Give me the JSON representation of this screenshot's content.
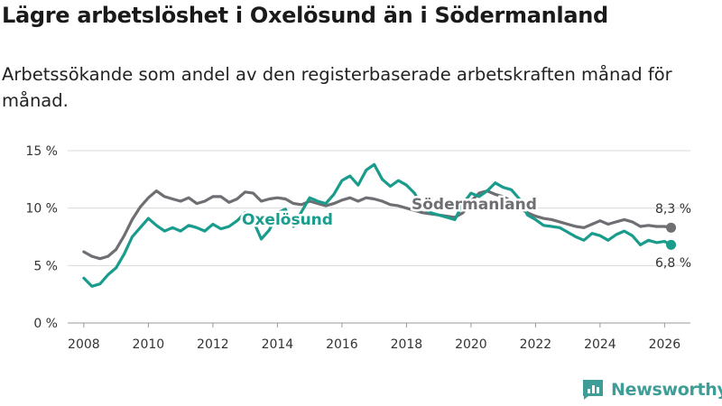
{
  "title": "Lägre arbetslöshet i Oxelösund än i Södermanland",
  "subtitle": "Arbetssökande som andel av den registerbaserade arbetskraften månad för månad.",
  "brand": "Newsworthy",
  "colors": {
    "oxelosund": "#1a9c8c",
    "sodermanland": "#6e6e73",
    "grid": "#d9d9d9",
    "brand": "#3e9d96"
  },
  "chart_data": {
    "type": "line",
    "title": "Lägre arbetslöshet i Oxelösund än i Södermanland",
    "xlabel": "",
    "ylabel": "",
    "xlim": [
      2007.5,
      2026.8
    ],
    "ylim": [
      0,
      15
    ],
    "x_ticks": [
      2008,
      2010,
      2012,
      2014,
      2016,
      2018,
      2020,
      2022,
      2024,
      2026
    ],
    "x_tick_labels": [
      "2008",
      "2010",
      "2012",
      "2014",
      "2016",
      "2018",
      "2020",
      "2022",
      "2024",
      "2026"
    ],
    "y_ticks": [
      0,
      5,
      10,
      15
    ],
    "y_tick_labels": [
      "0 %",
      "5 %",
      "10 %",
      "15 %"
    ],
    "grid": true,
    "series": [
      {
        "name": "Oxelösund",
        "key": "oxelosund",
        "label": "Oxelösund",
        "end_label": "6,8 %",
        "points": [
          [
            2008.0,
            3.9
          ],
          [
            2008.25,
            3.2
          ],
          [
            2008.5,
            3.4
          ],
          [
            2008.75,
            4.2
          ],
          [
            2009.0,
            4.8
          ],
          [
            2009.25,
            6.0
          ],
          [
            2009.5,
            7.5
          ],
          [
            2009.75,
            8.3
          ],
          [
            2010.0,
            9.1
          ],
          [
            2010.25,
            8.5
          ],
          [
            2010.5,
            8.0
          ],
          [
            2010.75,
            8.3
          ],
          [
            2011.0,
            8.0
          ],
          [
            2011.25,
            8.5
          ],
          [
            2011.5,
            8.3
          ],
          [
            2011.75,
            8.0
          ],
          [
            2012.0,
            8.6
          ],
          [
            2012.25,
            8.2
          ],
          [
            2012.5,
            8.4
          ],
          [
            2012.75,
            8.9
          ],
          [
            2013.0,
            9.6
          ],
          [
            2013.25,
            8.9
          ],
          [
            2013.5,
            7.3
          ],
          [
            2013.75,
            8.1
          ],
          [
            2014.0,
            9.6
          ],
          [
            2014.25,
            9.9
          ],
          [
            2014.5,
            8.4
          ],
          [
            2014.75,
            9.7
          ],
          [
            2015.0,
            10.9
          ],
          [
            2015.25,
            10.6
          ],
          [
            2015.5,
            10.4
          ],
          [
            2015.75,
            11.2
          ],
          [
            2016.0,
            12.4
          ],
          [
            2016.25,
            12.8
          ],
          [
            2016.5,
            12.0
          ],
          [
            2016.75,
            13.3
          ],
          [
            2017.0,
            13.8
          ],
          [
            2017.25,
            12.5
          ],
          [
            2017.5,
            11.9
          ],
          [
            2017.75,
            12.4
          ],
          [
            2018.0,
            12.0
          ],
          [
            2018.25,
            11.3
          ],
          [
            2018.5,
            10.0
          ],
          [
            2018.75,
            9.6
          ],
          [
            2019.0,
            9.4
          ],
          [
            2019.25,
            9.2
          ],
          [
            2019.5,
            9.0
          ],
          [
            2019.75,
            10.4
          ],
          [
            2020.0,
            11.3
          ],
          [
            2020.25,
            11.0
          ],
          [
            2020.5,
            11.5
          ],
          [
            2020.75,
            12.2
          ],
          [
            2021.0,
            11.8
          ],
          [
            2021.25,
            11.6
          ],
          [
            2021.5,
            10.8
          ],
          [
            2021.75,
            9.4
          ],
          [
            2022.0,
            9.0
          ],
          [
            2022.25,
            8.5
          ],
          [
            2022.5,
            8.4
          ],
          [
            2022.75,
            8.3
          ],
          [
            2023.0,
            7.9
          ],
          [
            2023.25,
            7.5
          ],
          [
            2023.5,
            7.2
          ],
          [
            2023.75,
            7.8
          ],
          [
            2024.0,
            7.6
          ],
          [
            2024.25,
            7.2
          ],
          [
            2024.5,
            7.7
          ],
          [
            2024.75,
            8.0
          ],
          [
            2025.0,
            7.6
          ],
          [
            2025.25,
            6.8
          ],
          [
            2025.5,
            7.2
          ],
          [
            2025.75,
            7.0
          ],
          [
            2026.0,
            7.1
          ],
          [
            2026.2,
            6.8
          ]
        ]
      },
      {
        "name": "Södermanland",
        "key": "sodermanland",
        "label": "Södermanland",
        "end_label": "8,3 %",
        "points": [
          [
            2008.0,
            6.2
          ],
          [
            2008.25,
            5.8
          ],
          [
            2008.5,
            5.6
          ],
          [
            2008.75,
            5.8
          ],
          [
            2009.0,
            6.4
          ],
          [
            2009.25,
            7.6
          ],
          [
            2009.5,
            9.0
          ],
          [
            2009.75,
            10.1
          ],
          [
            2010.0,
            10.9
          ],
          [
            2010.25,
            11.5
          ],
          [
            2010.5,
            11.0
          ],
          [
            2010.75,
            10.8
          ],
          [
            2011.0,
            10.6
          ],
          [
            2011.25,
            10.9
          ],
          [
            2011.5,
            10.4
          ],
          [
            2011.75,
            10.6
          ],
          [
            2012.0,
            11.0
          ],
          [
            2012.25,
            11.0
          ],
          [
            2012.5,
            10.5
          ],
          [
            2012.75,
            10.8
          ],
          [
            2013.0,
            11.4
          ],
          [
            2013.25,
            11.3
          ],
          [
            2013.5,
            10.6
          ],
          [
            2013.75,
            10.8
          ],
          [
            2014.0,
            10.9
          ],
          [
            2014.25,
            10.8
          ],
          [
            2014.5,
            10.4
          ],
          [
            2014.75,
            10.3
          ],
          [
            2015.0,
            10.6
          ],
          [
            2015.25,
            10.4
          ],
          [
            2015.5,
            10.2
          ],
          [
            2015.75,
            10.4
          ],
          [
            2016.0,
            10.7
          ],
          [
            2016.25,
            10.9
          ],
          [
            2016.5,
            10.6
          ],
          [
            2016.75,
            10.9
          ],
          [
            2017.0,
            10.8
          ],
          [
            2017.25,
            10.6
          ],
          [
            2017.5,
            10.3
          ],
          [
            2017.75,
            10.2
          ],
          [
            2018.0,
            10.0
          ],
          [
            2018.25,
            9.8
          ],
          [
            2018.5,
            9.6
          ],
          [
            2018.75,
            9.5
          ],
          [
            2019.0,
            9.4
          ],
          [
            2019.25,
            9.3
          ],
          [
            2019.5,
            9.2
          ],
          [
            2019.75,
            9.6
          ],
          [
            2020.0,
            10.6
          ],
          [
            2020.25,
            11.3
          ],
          [
            2020.5,
            11.5
          ],
          [
            2020.75,
            11.2
          ],
          [
            2021.0,
            11.0
          ],
          [
            2021.25,
            10.6
          ],
          [
            2021.5,
            10.0
          ],
          [
            2021.75,
            9.6
          ],
          [
            2022.0,
            9.3
          ],
          [
            2022.25,
            9.1
          ],
          [
            2022.5,
            9.0
          ],
          [
            2022.75,
            8.8
          ],
          [
            2023.0,
            8.6
          ],
          [
            2023.25,
            8.4
          ],
          [
            2023.5,
            8.3
          ],
          [
            2023.75,
            8.6
          ],
          [
            2024.0,
            8.9
          ],
          [
            2024.25,
            8.6
          ],
          [
            2024.5,
            8.8
          ],
          [
            2024.75,
            9.0
          ],
          [
            2025.0,
            8.8
          ],
          [
            2025.25,
            8.4
          ],
          [
            2025.5,
            8.5
          ],
          [
            2025.75,
            8.4
          ],
          [
            2026.0,
            8.4
          ],
          [
            2026.2,
            8.3
          ]
        ]
      }
    ]
  }
}
